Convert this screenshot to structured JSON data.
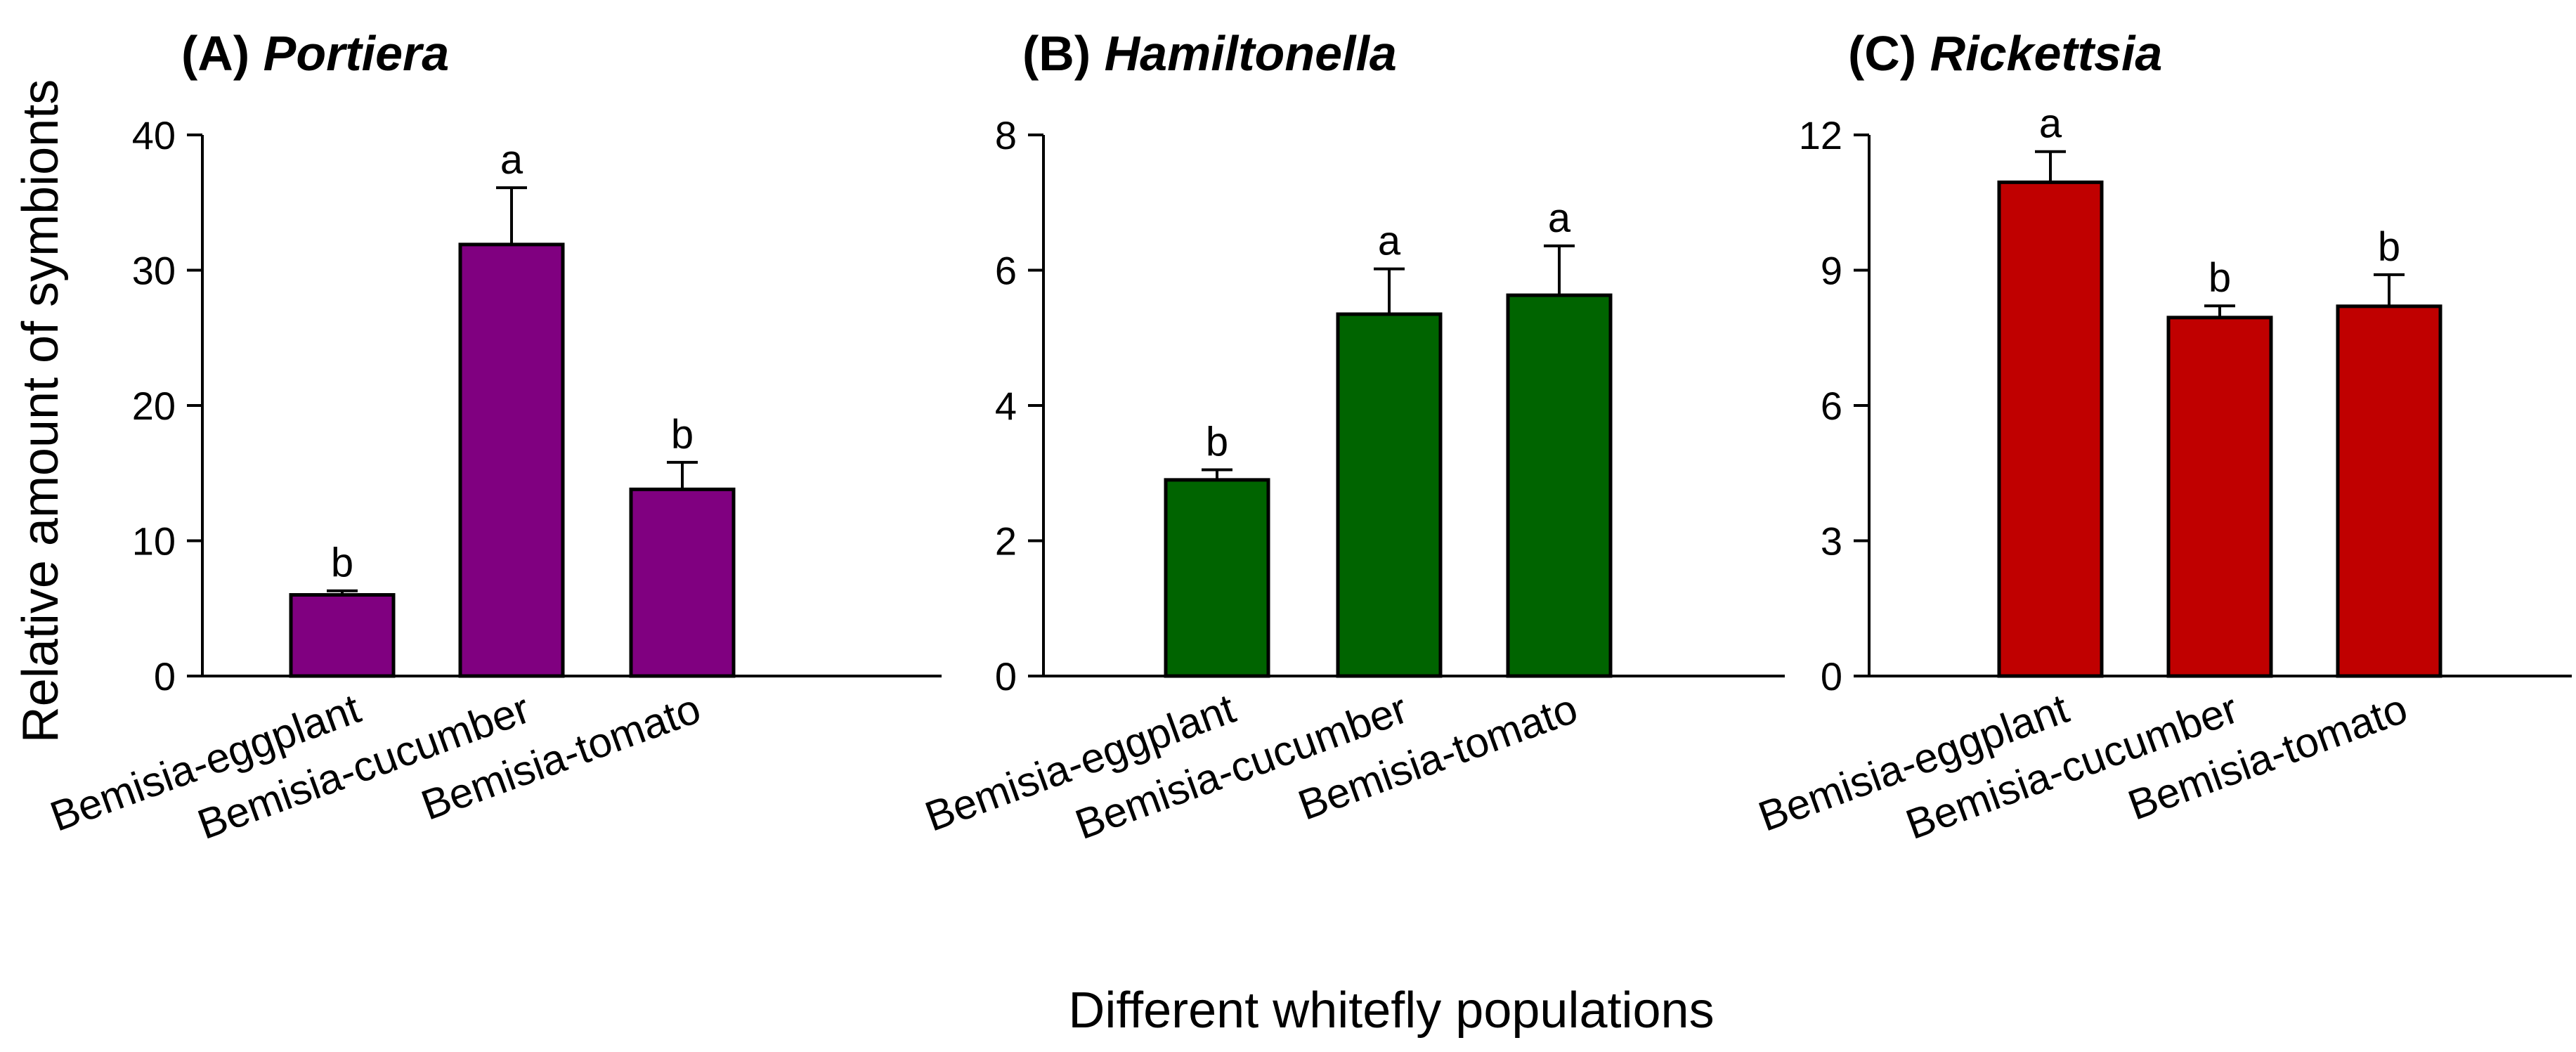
{
  "figure": {
    "ylabel": "Relative amount of symbionts",
    "xlabel": "Different whitefly populations"
  },
  "chart_data": [
    {
      "type": "bar",
      "panel_label": "(A)",
      "title": "Portiera",
      "categories": [
        "Bemisia-eggplant",
        "Bemisia-cucumber",
        "Bemisia-tomato"
      ],
      "values": [
        6.0,
        31.9,
        13.8
      ],
      "errors": [
        0.3,
        4.2,
        2.0
      ],
      "letters": [
        "b",
        "a",
        "b"
      ],
      "ylim": [
        0,
        40
      ],
      "yticks": [
        "0",
        "10",
        "20",
        "30",
        "40"
      ],
      "color": "#800080"
    },
    {
      "type": "bar",
      "panel_label": "(B)",
      "title": "Hamiltonella",
      "categories": [
        "Bemisia-eggplant",
        "Bemisia-cucumber",
        "Bemisia-tomato"
      ],
      "values": [
        2.9,
        5.35,
        5.63
      ],
      "errors": [
        0.15,
        0.67,
        0.73
      ],
      "letters": [
        "b",
        "a",
        "a"
      ],
      "ylim": [
        0,
        8
      ],
      "yticks": [
        "0",
        "2",
        "4",
        "6",
        "8"
      ],
      "color": "#006400"
    },
    {
      "type": "bar",
      "panel_label": "(C)",
      "title": "Rickettsia",
      "categories": [
        "Bemisia-eggplant",
        "Bemisia-cucumber",
        "Bemisia-tomato"
      ],
      "values": [
        10.95,
        7.95,
        8.2
      ],
      "errors": [
        0.68,
        0.26,
        0.7
      ],
      "letters": [
        "a",
        "b",
        "b"
      ],
      "ylim": [
        0,
        12
      ],
      "yticks": [
        "0",
        "3",
        "6",
        "9",
        "12"
      ],
      "color": "#C00000"
    }
  ]
}
